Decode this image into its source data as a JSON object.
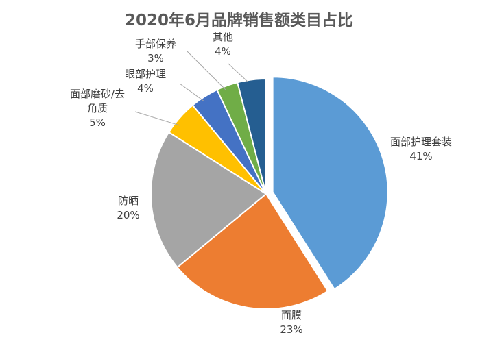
{
  "chart_data": {
    "type": "pie",
    "title": "2020年6月品牌销售额类目占比",
    "slices": [
      {
        "label": "面部护理套装",
        "value": 41,
        "percent_label": "41%",
        "color": "#5B9BD5",
        "exploded": true
      },
      {
        "label": "面膜",
        "value": 23,
        "percent_label": "23%",
        "color": "#ED7D31"
      },
      {
        "label": "防晒",
        "value": 20,
        "percent_label": "20%",
        "color": "#A5A5A5"
      },
      {
        "label": "面部磨砂/去角质",
        "value": 5,
        "percent_label": "5%",
        "color": "#FFC000",
        "label_lines": [
          "面部磨砂/去",
          "角质"
        ]
      },
      {
        "label": "眼部护理",
        "value": 4,
        "percent_label": "4%",
        "color": "#4472C4"
      },
      {
        "label": "手部保养",
        "value": 3,
        "percent_label": "3%",
        "color": "#70AD47"
      },
      {
        "label": "其他",
        "value": 4,
        "percent_label": "4%",
        "color": "#255E91"
      }
    ],
    "legend": "none",
    "data_labels": "outside with leader lines"
  }
}
